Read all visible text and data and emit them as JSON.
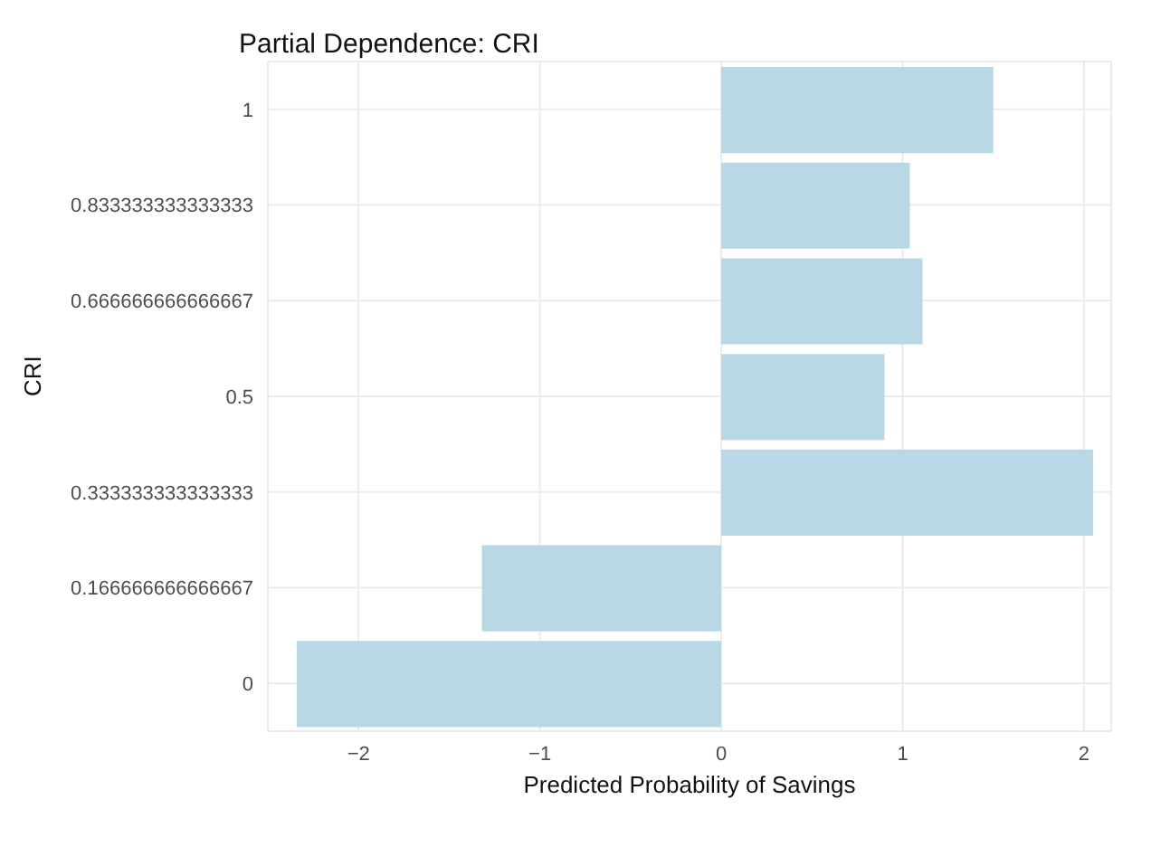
{
  "chart_data": {
    "type": "bar",
    "orientation": "horizontal",
    "title": "Partial Dependence: CRI",
    "xlabel": "Predicted Probability of Savings",
    "ylabel": "CRI",
    "categories": [
      "1",
      "0.833333333333333",
      "0.666666666666667",
      "0.5",
      "0.333333333333333",
      "0.166666666666667",
      "0"
    ],
    "values": [
      1.5,
      1.04,
      1.11,
      0.9,
      2.05,
      -1.32,
      -2.34
    ],
    "color": "#b7d8e4",
    "xlim": [
      -2.5,
      2.15
    ],
    "xticks": [
      -2,
      -1,
      0,
      1,
      2
    ],
    "grid": true
  }
}
